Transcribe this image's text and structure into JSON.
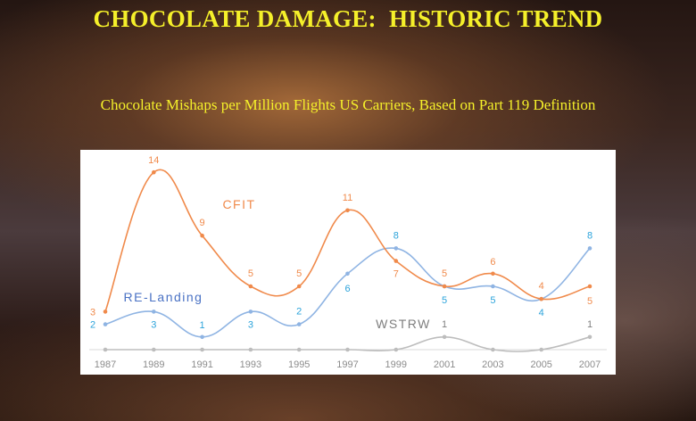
{
  "slide": {
    "title": "CHOCOLATE DAMAGE:  HISTORIC TREND",
    "subtitle": "Chocolate Mishaps per Million Flights US Carriers, Based on Part 119 Definition"
  },
  "chart_data": {
    "type": "line",
    "categories": [
      "1987",
      "1989",
      "1991",
      "1993",
      "1995",
      "1997",
      "1999",
      "2001",
      "2003",
      "2005",
      "2007"
    ],
    "series": [
      {
        "name": "CFIT",
        "color": "#f08a4b",
        "values": [
          3,
          14,
          9,
          5,
          5,
          11,
          7,
          5,
          6,
          4,
          5
        ],
        "labels": [
          "3",
          "14",
          "9",
          "5",
          "5",
          "11",
          "7",
          "5",
          "6",
          "4",
          "5"
        ]
      },
      {
        "name": "RE-Landing",
        "color": "#8fb4e3",
        "label_color": "#2ba3db",
        "name_color": "#4a72c4",
        "values": [
          2,
          3,
          1,
          3,
          2,
          6,
          8,
          5,
          5,
          4,
          8
        ],
        "labels": [
          "2",
          "3",
          "1",
          "3",
          "2",
          "6",
          "8",
          "5",
          "5",
          "4",
          "8"
        ]
      },
      {
        "name": "WSTRW",
        "color": "#bdbdbd",
        "label_color": "#7f7f7f",
        "values": [
          0,
          0,
          0,
          0,
          0,
          0,
          0,
          1,
          0,
          0,
          1
        ],
        "labels": [
          "",
          "",
          "",
          "",
          "",
          "",
          "",
          "1",
          "",
          "",
          "1"
        ]
      }
    ],
    "ylim": [
      0,
      15
    ],
    "grid": false,
    "legend": "inline labels"
  }
}
